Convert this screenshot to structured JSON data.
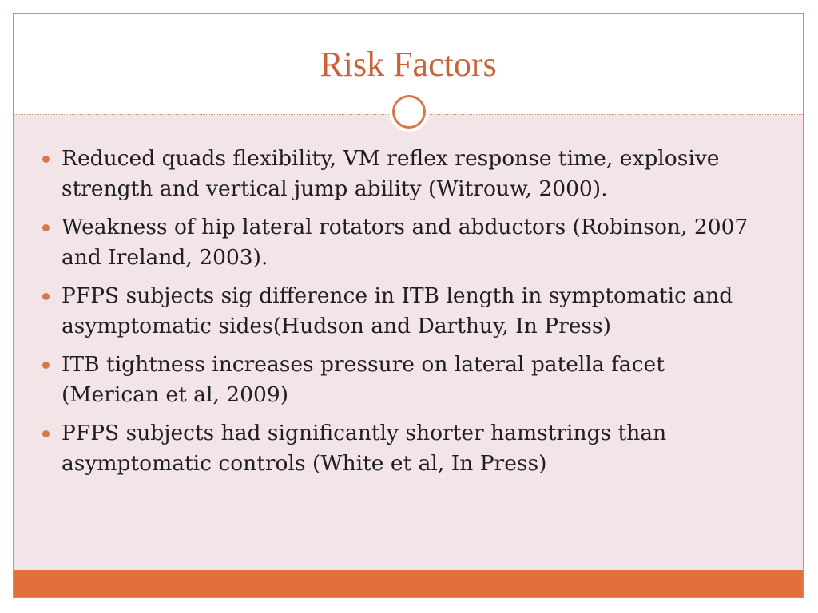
{
  "slide": {
    "title": "Risk Factors",
    "bullets": [
      "Reduced quads flexibility, VM reflex response time, explosive strength and vertical jump ability (Witrouw, 2000).",
      "Weakness of hip lateral rotators and abductors (Robinson, 2007 and Ireland, 2003).",
      "PFPS subjects sig difference in ITB length in symptomatic and asymptomatic sides(Hudson and Darthuy, In Press)",
      "ITB tightness increases pressure on lateral patella facet (Merican et al, 2009)",
      "PFPS subjects had significantly shorter hamstrings than asymptomatic controls (White et al, In Press)"
    ]
  },
  "colors": {
    "accent": "#e2703d",
    "title": "#c8643a",
    "body_background": "#f3e4e8"
  }
}
